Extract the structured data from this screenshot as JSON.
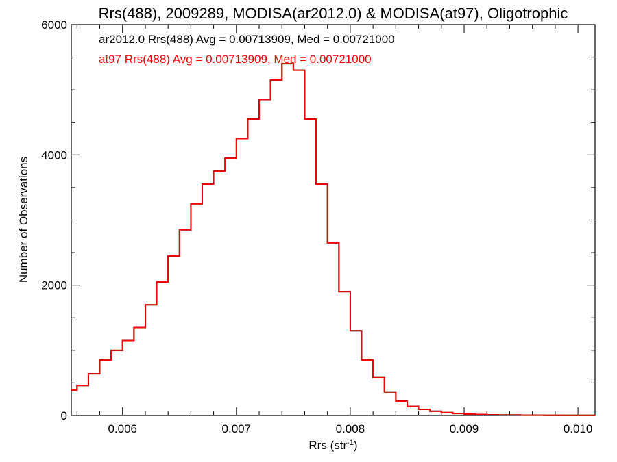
{
  "chart_data": {
    "type": "line",
    "step": true,
    "title": "Rrs(488), 2009289, MODISA(ar2012.0) & MODISA(at97), Oligotrophic",
    "xlabel_main": "Rrs (str",
    "xlabel_sup": "-1",
    "xlabel_end": ")",
    "ylabel": "Number of Observations",
    "xlim": [
      0.00555,
      0.01015
    ],
    "ylim": [
      0,
      6000
    ],
    "x_ticks": [
      0.006,
      0.007,
      0.008,
      0.009,
      0.01
    ],
    "x_tick_labels": [
      "0.006",
      "0.007",
      "0.008",
      "0.009",
      "0.010"
    ],
    "y_ticks": [
      0,
      2000,
      4000,
      6000
    ],
    "y_tick_labels": [
      "0",
      "2000",
      "4000",
      "6000"
    ],
    "annotations": [
      {
        "text": "ar2012.0 Rrs(488) Avg = 0.00713909, Med = 0.00721000",
        "color": "#000000"
      },
      {
        "text": "at97 Rrs(488) Avg = 0.00713909, Med = 0.00721000",
        "color": "#ff0000"
      }
    ],
    "series": [
      {
        "color": "#000000",
        "x": [
          0.00555,
          0.0056,
          0.0057,
          0.0058,
          0.0059,
          0.006,
          0.0061,
          0.0062,
          0.0063,
          0.0064,
          0.0065,
          0.0066,
          0.0067,
          0.0068,
          0.0069,
          0.007,
          0.0071,
          0.0072,
          0.0073,
          0.0074,
          0.0075,
          0.0076,
          0.0077,
          0.0078,
          0.0079,
          0.008,
          0.0081,
          0.0082,
          0.0083,
          0.0084,
          0.0085,
          0.0086,
          0.0087,
          0.0088,
          0.0089,
          0.009,
          0.0091,
          0.0092,
          0.0093,
          0.0095,
          0.0097,
          0.0099,
          0.01015
        ],
        "y": [
          390,
          460,
          640,
          850,
          1000,
          1150,
          1350,
          1700,
          2050,
          2450,
          2850,
          3250,
          3550,
          3750,
          3950,
          4250,
          4550,
          4850,
          5150,
          5400,
          5300,
          4550,
          3550,
          2650,
          1900,
          1300,
          850,
          580,
          360,
          220,
          140,
          95,
          65,
          45,
          30,
          22,
          15,
          10,
          8,
          5,
          3,
          2,
          1
        ]
      },
      {
        "color": "#ff0000",
        "x": [
          0.00555,
          0.0056,
          0.0057,
          0.0058,
          0.0059,
          0.006,
          0.0061,
          0.0062,
          0.0063,
          0.0064,
          0.0065,
          0.0066,
          0.0067,
          0.0068,
          0.0069,
          0.007,
          0.0071,
          0.0072,
          0.0073,
          0.0074,
          0.0075,
          0.0076,
          0.0077,
          0.0078,
          0.0079,
          0.008,
          0.0081,
          0.0082,
          0.0083,
          0.0084,
          0.0085,
          0.0086,
          0.0087,
          0.0088,
          0.0089,
          0.009,
          0.0091,
          0.0092,
          0.0093,
          0.0095,
          0.0097,
          0.0099,
          0.01015
        ],
        "y": [
          390,
          460,
          640,
          850,
          1000,
          1150,
          1350,
          1700,
          2050,
          2450,
          2850,
          3250,
          3550,
          3750,
          3950,
          4250,
          4550,
          4850,
          5150,
          5400,
          5300,
          4550,
          3550,
          2650,
          1900,
          1300,
          850,
          580,
          360,
          220,
          140,
          95,
          65,
          45,
          30,
          22,
          15,
          10,
          8,
          5,
          3,
          2,
          1
        ]
      }
    ],
    "grid": false,
    "legend": "top-left annotations"
  }
}
